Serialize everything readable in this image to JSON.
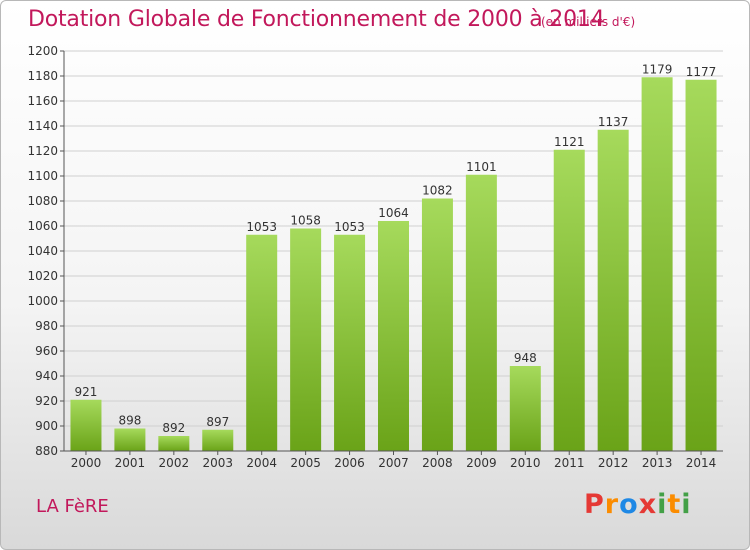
{
  "header": {
    "title": "Dotation Globale de Fonctionnement de 2000 à 2014",
    "unit": "(en milliers d'€)"
  },
  "commune": "LA FèRE",
  "logo": {
    "letters": [
      {
        "char": "P",
        "color": "#e53935"
      },
      {
        "char": "r",
        "color": "#fb8c00"
      },
      {
        "char": "o",
        "color": "#1e88e5"
      },
      {
        "char": "x",
        "color": "#e53935"
      },
      {
        "char": "i",
        "color": "#43a047"
      },
      {
        "char": "t",
        "color": "#fb8c00"
      },
      {
        "char": "i",
        "color": "#43a047"
      }
    ]
  },
  "colors": {
    "bar_top": "#a6da5c",
    "bar_bottom": "#6aa318",
    "title": "#c2185b",
    "grid": "#d0d0d0"
  },
  "chart_data": {
    "type": "bar",
    "title": "Dotation Globale de Fonctionnement de 2000 à 2014",
    "subtitle": "(en milliers d'€)",
    "xlabel": "",
    "ylabel": "",
    "categories": [
      "2000",
      "2001",
      "2002",
      "2003",
      "2004",
      "2005",
      "2006",
      "2007",
      "2008",
      "2009",
      "2010",
      "2011",
      "2012",
      "2013",
      "2014"
    ],
    "values": [
      921,
      898,
      892,
      897,
      1053,
      1058,
      1053,
      1064,
      1082,
      1101,
      948,
      1121,
      1137,
      1179,
      1177
    ],
    "ylim": [
      880,
      1200
    ],
    "yticks": [
      880,
      900,
      920,
      940,
      960,
      980,
      1000,
      1020,
      1040,
      1060,
      1080,
      1100,
      1120,
      1140,
      1160,
      1180,
      1200
    ],
    "grid": true,
    "data_labels": true
  }
}
